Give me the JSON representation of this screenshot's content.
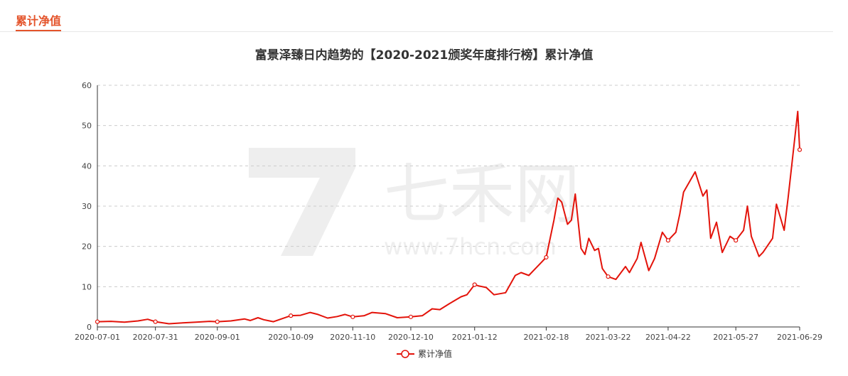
{
  "tab": {
    "label": "累计净值"
  },
  "watermark": {
    "text": "七禾网",
    "url": "www.7hcn.com"
  },
  "colors": {
    "accent": "#e4542b",
    "line": "#e3130a",
    "grid": "#cccccc"
  },
  "chart_data": {
    "type": "line",
    "title": "富景泽臻日内趋势的【2020-2021颁奖年度排行榜】累计净值",
    "xlabel": "",
    "ylabel": "",
    "ylim": [
      0,
      60
    ],
    "yticks": [
      "0",
      "10",
      "20",
      "30",
      "40",
      "50",
      "60"
    ],
    "xticks": [
      "2020-07-01",
      "2020-07-31",
      "2020-09-01",
      "2020-10-09",
      "2020-11-10",
      "2020-12-10",
      "2021-01-12",
      "2021-02-18",
      "2021-03-22",
      "2021-04-22",
      "2021-05-27",
      "2021-06-29"
    ],
    "grid": true,
    "legend_position": "bottom",
    "series": [
      {
        "name": "累计净值",
        "x": [
          "2020-07-01",
          "2020-07-08",
          "2020-07-15",
          "2020-07-22",
          "2020-07-27",
          "2020-07-31",
          "2020-08-07",
          "2020-08-14",
          "2020-08-21",
          "2020-08-28",
          "2020-09-01",
          "2020-09-08",
          "2020-09-15",
          "2020-09-18",
          "2020-09-22",
          "2020-09-25",
          "2020-09-30",
          "2020-10-09",
          "2020-10-14",
          "2020-10-19",
          "2020-10-23",
          "2020-10-28",
          "2020-11-02",
          "2020-11-06",
          "2020-11-10",
          "2020-11-16",
          "2020-11-20",
          "2020-11-27",
          "2020-12-03",
          "2020-12-10",
          "2020-12-16",
          "2020-12-21",
          "2020-12-25",
          "2020-12-30",
          "2021-01-05",
          "2021-01-08",
          "2021-01-12",
          "2021-01-14",
          "2021-01-18",
          "2021-01-22",
          "2021-01-28",
          "2021-02-02",
          "2021-02-05",
          "2021-02-09",
          "2021-02-18",
          "2021-02-22",
          "2021-02-24",
          "2021-02-26",
          "2021-03-01",
          "2021-03-03",
          "2021-03-05",
          "2021-03-08",
          "2021-03-10",
          "2021-03-12",
          "2021-03-15",
          "2021-03-17",
          "2021-03-19",
          "2021-03-22",
          "2021-03-26",
          "2021-03-31",
          "2021-04-02",
          "2021-04-06",
          "2021-04-08",
          "2021-04-12",
          "2021-04-15",
          "2021-04-19",
          "2021-04-22",
          "2021-04-26",
          "2021-04-28",
          "2021-04-30",
          "2021-05-06",
          "2021-05-10",
          "2021-05-12",
          "2021-05-14",
          "2021-05-17",
          "2021-05-20",
          "2021-05-24",
          "2021-05-27",
          "2021-05-31",
          "2021-06-02",
          "2021-06-04",
          "2021-06-08",
          "2021-06-10",
          "2021-06-15",
          "2021-06-17",
          "2021-06-21",
          "2021-06-23",
          "2021-06-25",
          "2021-06-28",
          "2021-06-29"
        ],
        "values": [
          1.3,
          1.4,
          1.2,
          1.5,
          1.9,
          1.3,
          0.8,
          1.0,
          1.2,
          1.4,
          1.3,
          1.5,
          2.0,
          1.6,
          2.3,
          1.8,
          1.3,
          2.8,
          2.9,
          3.6,
          3.1,
          2.2,
          2.6,
          3.1,
          2.5,
          2.8,
          3.6,
          3.3,
          2.3,
          2.5,
          2.8,
          4.5,
          4.3,
          5.8,
          7.5,
          8.0,
          10.5,
          10.2,
          9.8,
          8.0,
          8.5,
          12.8,
          13.5,
          12.8,
          17.3,
          26.5,
          32.0,
          31.0,
          25.5,
          26.5,
          33.0,
          19.5,
          18.0,
          22.0,
          19.0,
          19.5,
          14.5,
          12.5,
          11.8,
          15.0,
          13.5,
          17.0,
          21.0,
          14.0,
          17.0,
          23.5,
          21.5,
          23.5,
          28.0,
          33.5,
          38.5,
          32.5,
          34.0,
          22.0,
          26.0,
          18.5,
          22.5,
          21.5,
          24.0,
          30.0,
          22.5,
          17.5,
          18.5,
          22.0,
          30.5,
          24.0,
          32.0,
          40.5,
          53.5,
          44.0
        ]
      }
    ],
    "markers": [
      "2020-07-01",
      "2020-07-31",
      "2020-09-01",
      "2020-10-09",
      "2020-11-10",
      "2020-12-10",
      "2021-01-12",
      "2021-02-18",
      "2021-03-22",
      "2021-04-22",
      "2021-05-27",
      "2021-06-29"
    ]
  }
}
